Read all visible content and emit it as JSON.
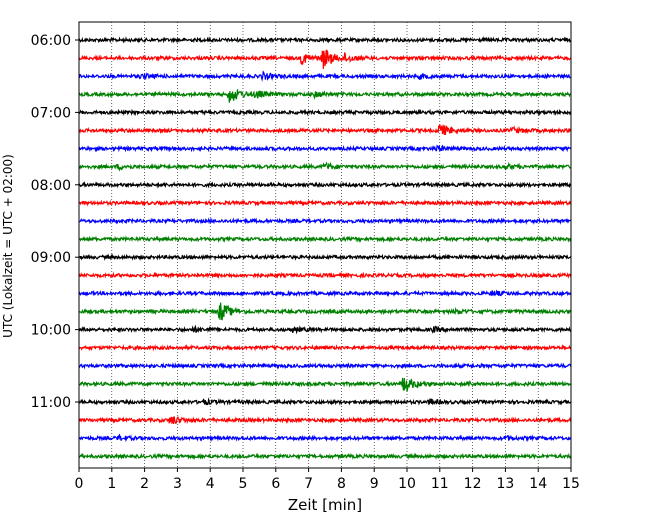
{
  "chart_data": {
    "type": "line",
    "title": "",
    "xlabel": "Zeit  [min]",
    "ylabel": "UTC (Lokalzeit = UTC + 02:00)",
    "xlim": [
      0,
      15
    ],
    "x_ticks": [
      0,
      1,
      2,
      3,
      4,
      5,
      6,
      7,
      8,
      9,
      10,
      11,
      12,
      13,
      14,
      15
    ],
    "x_grid": true,
    "grid_style": "dotted",
    "y_hour_labels": [
      "06:00",
      "07:00",
      "08:00",
      "09:00",
      "10:00",
      "11:00"
    ],
    "traces_per_hour": 4,
    "trace_length_min": 15,
    "trace_colors": [
      "#000000",
      "#ff0000",
      "#0000ff",
      "#008000"
    ],
    "traces": [
      {
        "start": "06:00",
        "events": []
      },
      {
        "start": "06:15",
        "events": [
          {
            "t": 6.8,
            "amp": 0.55
          },
          {
            "t": 7.45,
            "amp": 1.0
          },
          {
            "t": 8.1,
            "amp": 0.35
          }
        ]
      },
      {
        "start": "06:30",
        "events": [
          {
            "t": 1.9,
            "amp": 0.2
          },
          {
            "t": 5.6,
            "amp": 0.3
          },
          {
            "t": 10.4,
            "amp": 0.2
          }
        ]
      },
      {
        "start": "06:45",
        "events": [
          {
            "t": 4.6,
            "amp": 0.9
          },
          {
            "t": 5.4,
            "amp": 0.35
          },
          {
            "t": 7.2,
            "amp": 0.25
          }
        ]
      },
      {
        "start": "07:00",
        "events": []
      },
      {
        "start": "07:15",
        "events": [
          {
            "t": 11.0,
            "amp": 0.65
          },
          {
            "t": 13.2,
            "amp": 0.25
          }
        ]
      },
      {
        "start": "07:30",
        "events": [
          {
            "t": 10.9,
            "amp": 0.25
          }
        ]
      },
      {
        "start": "07:45",
        "events": [
          {
            "t": 1.2,
            "amp": 0.2
          },
          {
            "t": 7.5,
            "amp": 0.3
          },
          {
            "t": 13.0,
            "amp": 0.2
          }
        ]
      },
      {
        "start": "08:00",
        "events": []
      },
      {
        "start": "08:15",
        "events": []
      },
      {
        "start": "08:30",
        "events": []
      },
      {
        "start": "08:45",
        "events": []
      },
      {
        "start": "09:00",
        "events": []
      },
      {
        "start": "09:15",
        "events": []
      },
      {
        "start": "09:30",
        "events": [
          {
            "t": 12.6,
            "amp": 0.2
          }
        ]
      },
      {
        "start": "09:45",
        "events": [
          {
            "t": 4.3,
            "amp": 0.95
          },
          {
            "t": 11.5,
            "amp": 0.2
          }
        ]
      },
      {
        "start": "10:00",
        "events": [
          {
            "t": 3.5,
            "amp": 0.2
          },
          {
            "t": 6.5,
            "amp": 0.2
          },
          {
            "t": 10.8,
            "amp": 0.2
          }
        ]
      },
      {
        "start": "10:15",
        "events": []
      },
      {
        "start": "10:30",
        "events": []
      },
      {
        "start": "10:45",
        "events": [
          {
            "t": 9.9,
            "amp": 0.9
          },
          {
            "t": 11.8,
            "amp": 0.2
          }
        ]
      },
      {
        "start": "11:00",
        "events": [
          {
            "t": 3.8,
            "amp": 0.2
          },
          {
            "t": 10.7,
            "amp": 0.2
          }
        ]
      },
      {
        "start": "11:15",
        "events": [
          {
            "t": 2.8,
            "amp": 0.45
          }
        ]
      },
      {
        "start": "11:30",
        "events": [
          {
            "t": 1.2,
            "amp": 0.2
          },
          {
            "t": 13.0,
            "amp": 0.15
          }
        ]
      },
      {
        "start": "11:45",
        "events": []
      }
    ]
  }
}
